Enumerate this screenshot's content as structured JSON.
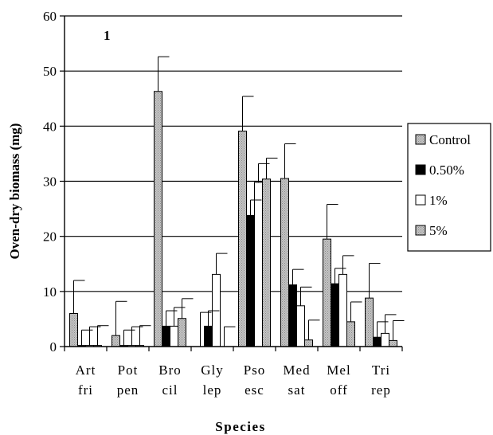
{
  "chart_data": {
    "type": "bar",
    "panel_label": "1",
    "xlabel": "Species",
    "ylabel": "Oven-dry biomass (mg)",
    "ylim": [
      0,
      60
    ],
    "yticks": [
      0,
      10,
      20,
      30,
      40,
      50,
      60
    ],
    "grid": "horizontal",
    "legend_position": "right",
    "categories": [
      [
        "Art",
        "fri"
      ],
      [
        "Pot",
        "pen"
      ],
      [
        "Bro",
        "cil"
      ],
      [
        "Gly",
        "lep"
      ],
      [
        "Pso",
        "esc"
      ],
      [
        "Med",
        "sat"
      ],
      [
        "Mel",
        "off"
      ],
      [
        "Tri",
        "rep"
      ]
    ],
    "series": [
      {
        "name": "Control",
        "pattern": "stipple",
        "values": [
          6,
          2,
          46.3,
          0,
          39.1,
          30.5,
          19.5,
          8.8
        ],
        "errors": [
          6,
          6.2,
          6.3,
          6.2,
          6.3,
          6.3,
          6.3,
          6.3
        ]
      },
      {
        "name": "0.50%",
        "pattern": "black",
        "values": [
          0.2,
          0.2,
          3.7,
          3.7,
          23.8,
          11.2,
          11.4,
          1.7
        ],
        "errors": [
          2.8,
          2.8,
          2.8,
          2.8,
          2.8,
          2.8,
          2.8,
          2.8
        ]
      },
      {
        "name": "1%",
        "pattern": "white",
        "values": [
          0.2,
          0.2,
          3.7,
          13.1,
          29.8,
          7.4,
          13.1,
          2.4
        ],
        "errors": [
          3.4,
          3.4,
          3.4,
          3.8,
          3.4,
          3.4,
          3.4,
          3.4
        ]
      },
      {
        "name": "5%",
        "pattern": "stipple",
        "values": [
          0.2,
          0.2,
          5.1,
          0,
          30.4,
          1.2,
          4.5,
          1.1
        ],
        "errors": [
          3.6,
          3.6,
          3.6,
          3.6,
          3.8,
          3.6,
          3.6,
          3.6
        ]
      }
    ]
  }
}
